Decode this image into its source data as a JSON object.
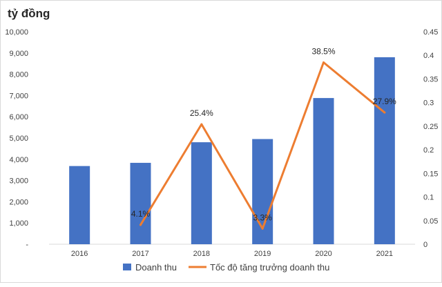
{
  "chart_data": {
    "type": "bar+line",
    "unit_label": "tỷ đồng",
    "categories": [
      "2016",
      "2017",
      "2018",
      "2019",
      "2020",
      "2021"
    ],
    "y_left": {
      "ylim": [
        0,
        10000
      ],
      "ticks": [
        "-",
        "1,000",
        "2,000",
        "3,000",
        "4,000",
        "5,000",
        "6,000",
        "7,000",
        "8,000",
        "9,000",
        "10,000"
      ],
      "tick_values": [
        0,
        1000,
        2000,
        3000,
        4000,
        5000,
        6000,
        7000,
        8000,
        9000,
        10000
      ]
    },
    "y_right": {
      "ylim": [
        0,
        0.45
      ],
      "ticks": [
        "0",
        "0.05",
        "0.1",
        "0.15",
        "0.2",
        "0.25",
        "0.3",
        "0.35",
        "0.4",
        "0.45"
      ],
      "tick_values": [
        0,
        0.05,
        0.1,
        0.15,
        0.2,
        0.25,
        0.3,
        0.35,
        0.4,
        0.45
      ]
    },
    "series": [
      {
        "name": "Doanh thu",
        "type": "bar",
        "axis": "left",
        "color": "#4472c4",
        "values": [
          3680,
          3830,
          4800,
          4950,
          6880,
          8800
        ]
      },
      {
        "name": "Tốc độ tăng trưởng doanh thu",
        "type": "line",
        "axis": "right",
        "color": "#ed7d31",
        "x": [
          "2017",
          "2018",
          "2019",
          "2020",
          "2021"
        ],
        "values": [
          0.041,
          0.254,
          0.033,
          0.385,
          0.279
        ],
        "labels": [
          "4.1%",
          "25.4%",
          "3.3%",
          "38.5%",
          "27.9%"
        ]
      }
    ],
    "grid": false,
    "legend": "bottom"
  }
}
